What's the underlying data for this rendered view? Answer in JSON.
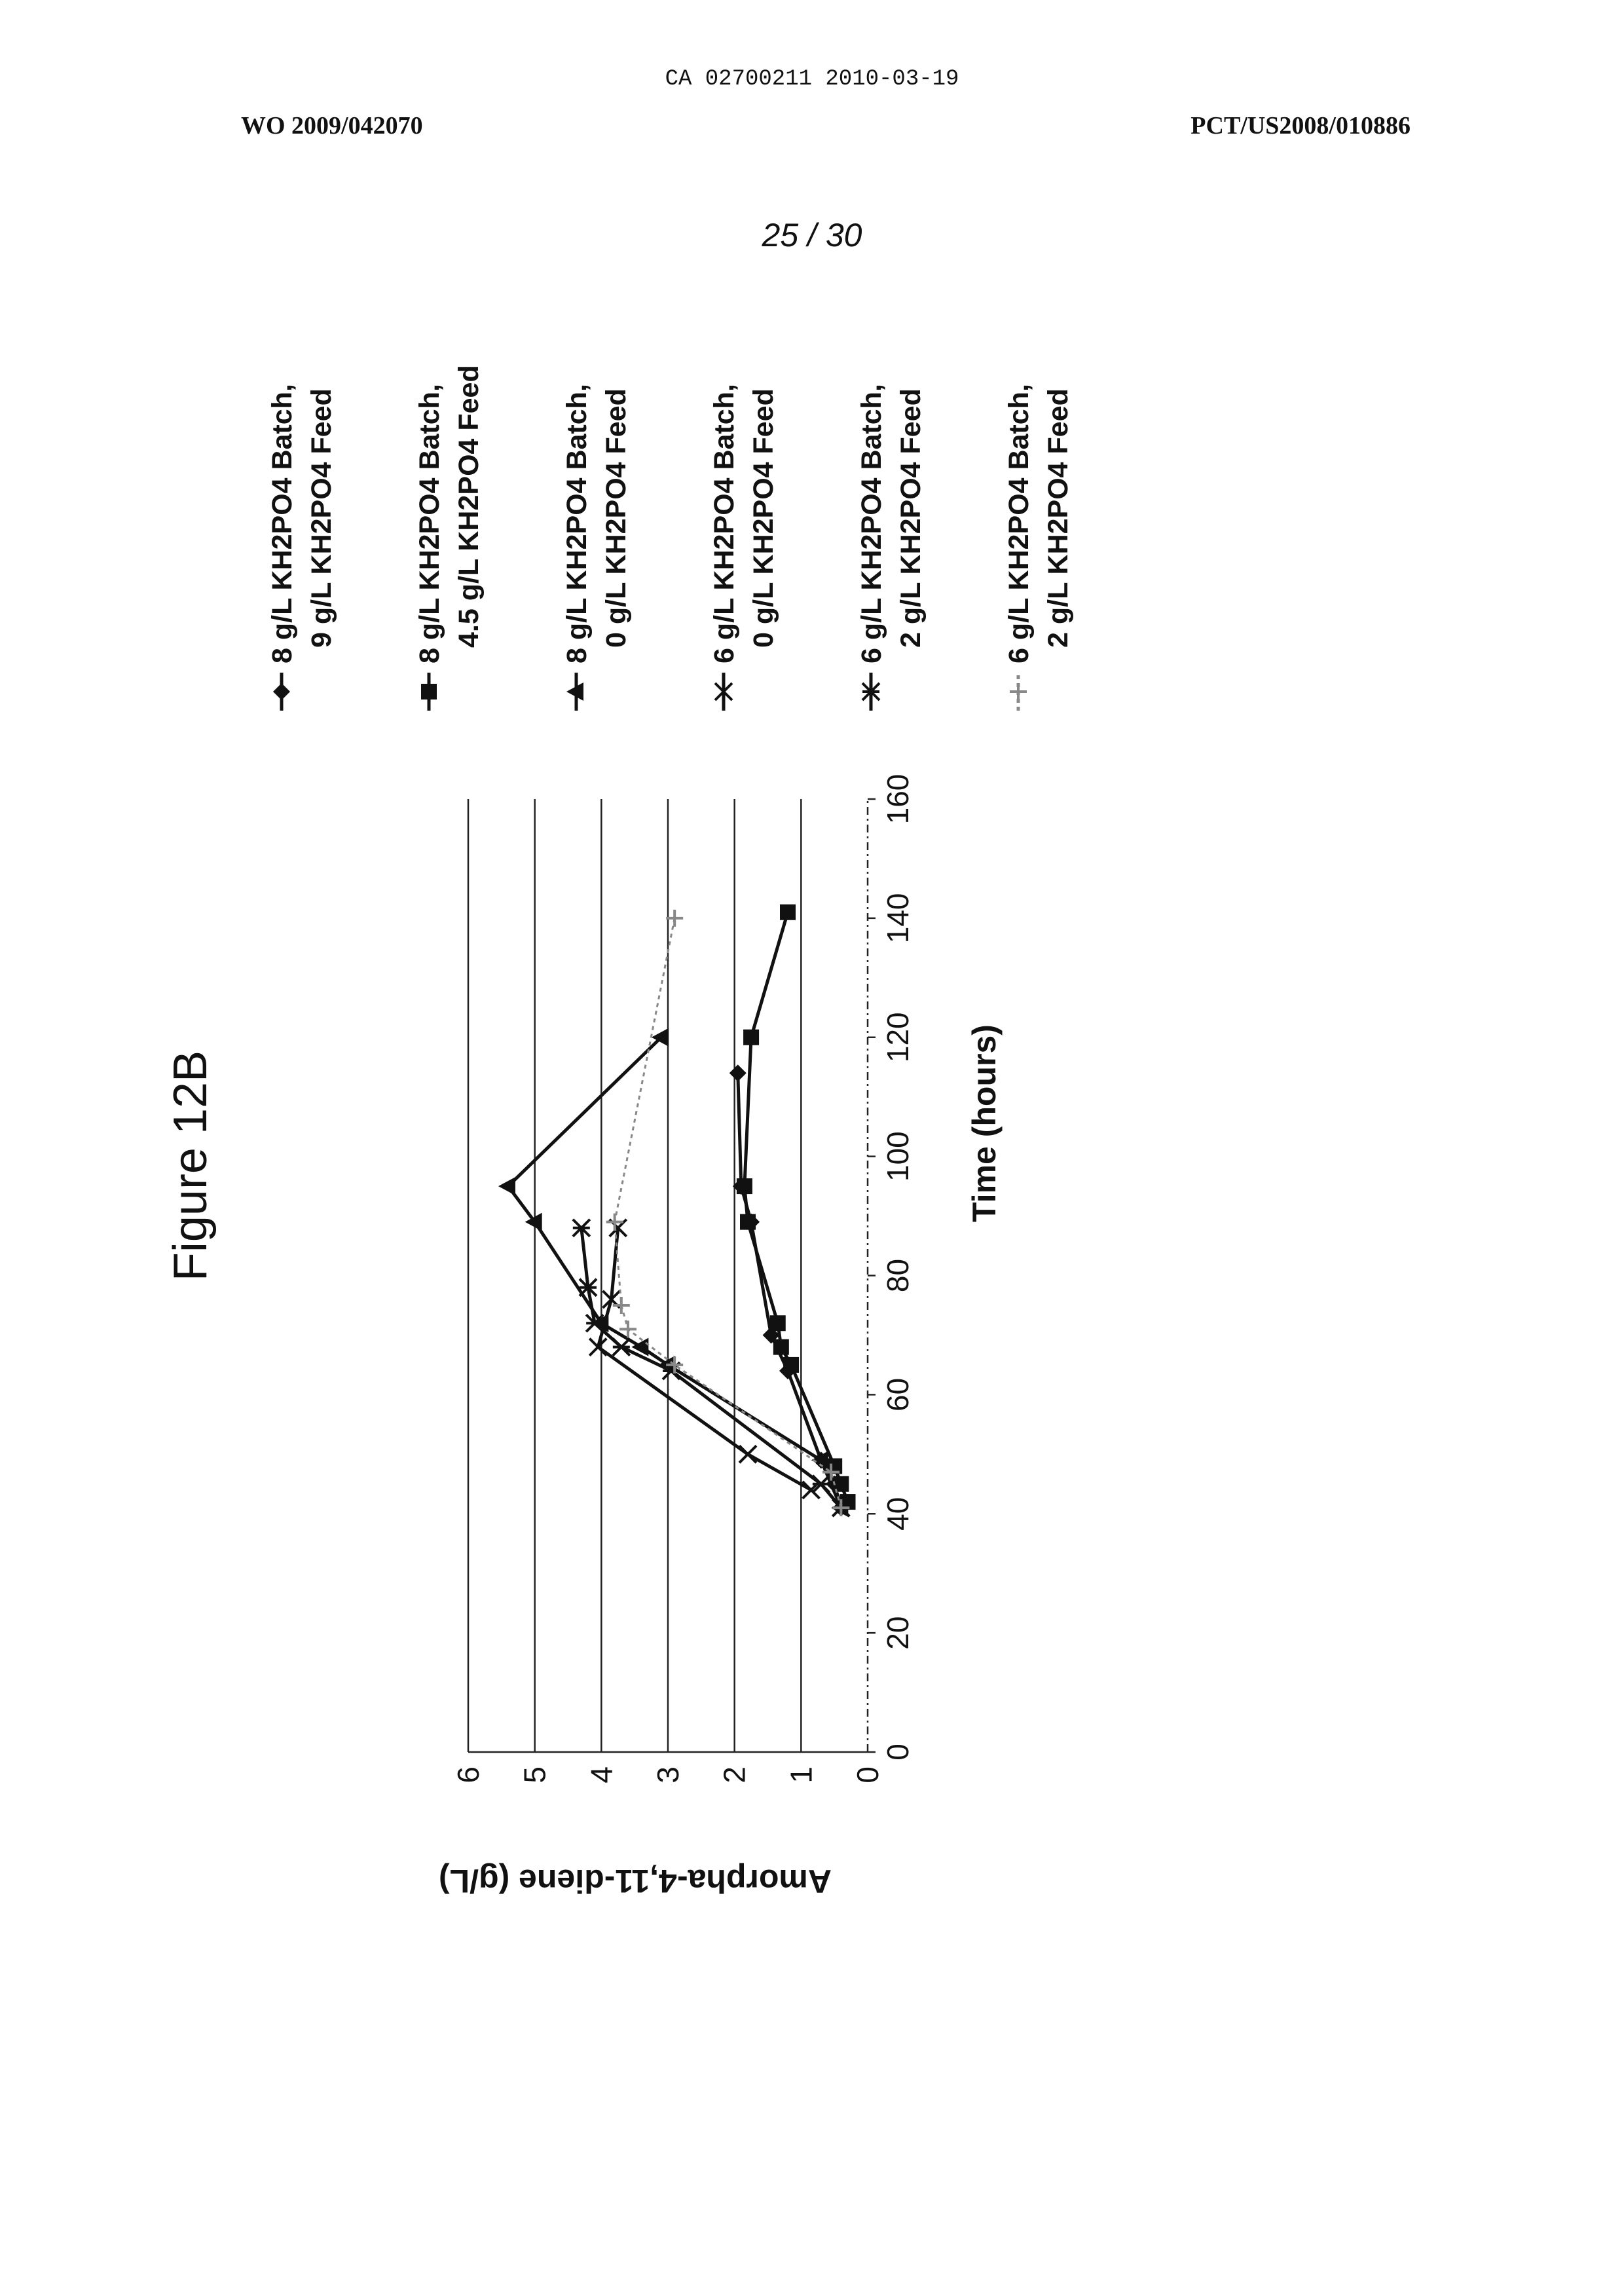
{
  "header": {
    "ca_line": "CA 02700211 2010-03-19",
    "wo_number": "WO 2009/042070",
    "pct_number": "PCT/US2008/010886",
    "page": "25 / 30"
  },
  "chart_data": {
    "type": "line",
    "title": "Figure 12B",
    "xlabel": "Time (hours)",
    "ylabel": "Amorpha-4,11-diene (g/L)",
    "xlim": [
      0,
      160
    ],
    "ylim": [
      0,
      6
    ],
    "xticks": [
      "0",
      "20",
      "40",
      "60",
      "80",
      "100",
      "120",
      "140",
      "160"
    ],
    "yticks": [
      "0",
      "1",
      "2",
      "3",
      "4",
      "5",
      "6"
    ],
    "grid": "horizontal",
    "legend_position": "right",
    "orientation": "page rotated 90 degrees counter-clockwise",
    "series": [
      {
        "name": "8 g/L KH2PO4 Batch, 9 g/L KH2PO4 Feed",
        "legend_lines": [
          "8 g/L KH2PO4 Batch,",
          "9 g/L KH2PO4 Feed"
        ],
        "marker": "diamond",
        "color": "#111111",
        "x": [
          41,
          45,
          49,
          64,
          70,
          89,
          95,
          114
        ],
        "y": [
          0.4,
          0.5,
          0.7,
          1.2,
          1.45,
          1.75,
          1.9,
          1.95
        ]
      },
      {
        "name": "8 g/L KH2PO4 Batch, 4.5 g/L KH2PO4 Feed",
        "legend_lines": [
          "8 g/L KH2PO4 Batch,",
          "4.5 g/L KH2PO4 Feed"
        ],
        "marker": "square",
        "color": "#111111",
        "x": [
          42,
          45,
          48,
          65,
          68,
          72,
          89,
          95,
          120,
          141
        ],
        "y": [
          0.3,
          0.4,
          0.5,
          1.15,
          1.3,
          1.35,
          1.8,
          1.85,
          1.75,
          1.2
        ]
      },
      {
        "name": "8 g/L KH2PO4 Batch, 0 g/L KH2PO4 Feed",
        "legend_lines": [
          "8 g/L KH2PO4 Batch,",
          "0 g/L KH2PO4 Feed"
        ],
        "marker": "triangle",
        "color": "#111111",
        "x": [
          41,
          49,
          65,
          68,
          72,
          89,
          95,
          120
        ],
        "y": [
          0.4,
          0.7,
          3.0,
          3.4,
          4.0,
          5.0,
          5.4,
          3.1
        ]
      },
      {
        "name": "6 g/L KH2PO4 Batch, 0 g/L KH2PO4 Feed",
        "legend_lines": [
          "6 g/L KH2PO4 Batch,",
          "0 g/L KH2PO4 Feed"
        ],
        "marker": "x",
        "color": "#111111",
        "x": [
          44,
          50,
          68,
          76,
          88
        ],
        "y": [
          0.85,
          1.8,
          4.05,
          3.85,
          3.75
        ]
      },
      {
        "name": "6 g/L KH2PO4 Batch, 2 g/L KH2PO4 Feed",
        "legend_lines": [
          "6 g/L KH2PO4 Batch,",
          "2 g/L KH2PO4 Feed"
        ],
        "marker": "star",
        "color": "#111111",
        "x": [
          41,
          45,
          64,
          68,
          72,
          78,
          88
        ],
        "y": [
          0.4,
          0.7,
          2.95,
          3.7,
          4.1,
          4.2,
          4.3
        ]
      },
      {
        "name": "6 g/L KH2PO4 Batch, 2 g/L KH2PO4 Feed",
        "legend_lines": [
          "6 g/L KH2PO4 Batch,",
          "2 g/L KH2PO4 Feed"
        ],
        "marker": "plus-dotted",
        "color": "#888888",
        "x": [
          41,
          47,
          65,
          71,
          75,
          89,
          140
        ],
        "y": [
          0.4,
          0.55,
          2.9,
          3.6,
          3.7,
          3.8,
          2.9
        ]
      }
    ]
  }
}
